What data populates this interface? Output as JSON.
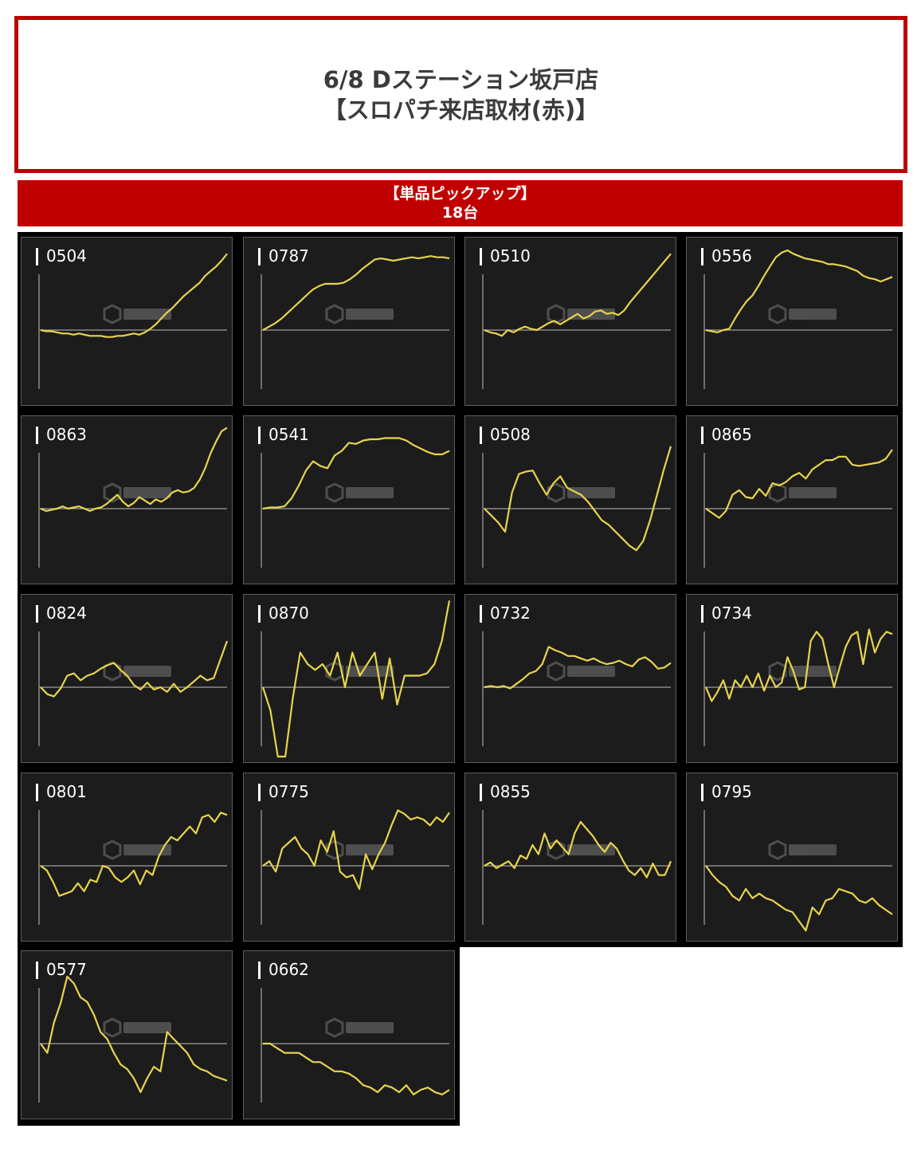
{
  "header": {
    "title_line1": "6/8 Dステーション坂戸店",
    "title_line2": "【スロパチ来店取材(赤)】"
  },
  "banner": {
    "line1": "【単品ピックアップ】",
    "line2": "18台"
  },
  "colors": {
    "accent": "#c00000",
    "line": "#e8d44d",
    "panel": "#1c1c1c"
  },
  "chart_data": [
    {
      "type": "line",
      "title": "0504",
      "series": [
        {
          "values": [
            0,
            -1,
            -1,
            -2,
            -3,
            -3,
            -4,
            -3,
            -4,
            -5,
            -5,
            -5,
            -6,
            -6,
            -5,
            -5,
            -4,
            -3,
            -4,
            -2,
            1,
            5,
            10,
            15,
            19,
            24,
            29,
            33,
            37,
            41,
            47,
            51,
            55,
            60,
            66
          ]
        }
      ]
    },
    {
      "type": "line",
      "title": "0787",
      "series": [
        {
          "values": [
            0,
            3,
            6,
            10,
            15,
            20,
            25,
            30,
            35,
            38,
            40,
            40,
            40,
            41,
            44,
            48,
            53,
            57,
            61,
            62,
            61,
            60,
            61,
            62,
            63,
            62,
            63,
            64,
            63,
            63,
            62
          ]
        }
      ]
    },
    {
      "type": "line",
      "title": "0510",
      "series": [
        {
          "values": [
            0,
            -2,
            -3,
            -5,
            0,
            -2,
            1,
            3,
            1,
            0,
            3,
            6,
            8,
            5,
            8,
            11,
            14,
            10,
            12,
            16,
            17,
            14,
            15,
            13,
            17,
            24,
            30,
            36,
            42,
            48,
            54,
            60,
            66
          ]
        }
      ]
    },
    {
      "type": "line",
      "title": "0556",
      "series": [
        {
          "values": [
            0,
            -1,
            -2,
            0,
            1,
            10,
            18,
            25,
            30,
            38,
            47,
            55,
            63,
            67,
            69,
            66,
            64,
            62,
            61,
            60,
            59,
            57,
            57,
            56,
            55,
            53,
            51,
            47,
            45,
            44,
            42,
            44,
            46
          ]
        }
      ]
    },
    {
      "type": "line",
      "title": "0863",
      "series": [
        {
          "values": [
            0,
            -2,
            -1,
            0,
            2,
            0,
            1,
            2,
            0,
            -2,
            0,
            1,
            4,
            8,
            12,
            6,
            2,
            5,
            10,
            7,
            4,
            8,
            6,
            9,
            14,
            16,
            14,
            15,
            18,
            25,
            35,
            48,
            58,
            67,
            70
          ]
        }
      ]
    },
    {
      "type": "line",
      "title": "0541",
      "series": [
        {
          "values": [
            0,
            1,
            1,
            2,
            9,
            20,
            33,
            41,
            37,
            35,
            46,
            50,
            57,
            56,
            59,
            60,
            60,
            61,
            61,
            61,
            59,
            55,
            52,
            49,
            47,
            47,
            50
          ]
        }
      ]
    },
    {
      "type": "line",
      "title": "0508",
      "series": [
        {
          "values": [
            0,
            -6,
            -12,
            -20,
            14,
            30,
            32,
            33,
            22,
            12,
            22,
            28,
            18,
            15,
            12,
            6,
            -2,
            -10,
            -14,
            -20,
            -26,
            -32,
            -36,
            -28,
            -10,
            12,
            34,
            54
          ]
        }
      ]
    },
    {
      "type": "line",
      "title": "0865",
      "series": [
        {
          "values": [
            0,
            -4,
            -8,
            -2,
            12,
            16,
            10,
            9,
            17,
            11,
            22,
            20,
            23,
            28,
            31,
            26,
            34,
            38,
            42,
            42,
            45,
            45,
            38,
            37,
            38,
            39,
            40,
            43,
            51
          ]
        }
      ]
    },
    {
      "type": "line",
      "title": "0824",
      "series": [
        {
          "values": [
            0,
            -6,
            -8,
            -1,
            10,
            12,
            6,
            10,
            12,
            16,
            19,
            21,
            15,
            10,
            2,
            -2,
            4,
            -2,
            0,
            -4,
            3,
            -4,
            0,
            5,
            10,
            6,
            8,
            24,
            40
          ]
        }
      ]
    },
    {
      "type": "line",
      "title": "0870",
      "series": [
        {
          "values": [
            0,
            -20,
            -60,
            -60,
            -10,
            30,
            20,
            15,
            20,
            10,
            30,
            0,
            30,
            10,
            20,
            30,
            -10,
            25,
            -15,
            10,
            10,
            10,
            12,
            20,
            40,
            75
          ]
        }
      ]
    },
    {
      "type": "line",
      "title": "0732",
      "series": [
        {
          "values": [
            0,
            1,
            0,
            1,
            -1,
            3,
            7,
            12,
            14,
            20,
            35,
            32,
            30,
            27,
            27,
            25,
            23,
            25,
            22,
            20,
            21,
            23,
            20,
            18,
            24,
            26,
            22,
            16,
            17,
            21
          ]
        }
      ]
    },
    {
      "type": "line",
      "title": "0734",
      "series": [
        {
          "values": [
            0,
            -12,
            -4,
            6,
            -10,
            6,
            0,
            10,
            0,
            12,
            -3,
            10,
            0,
            4,
            26,
            14,
            -2,
            0,
            40,
            48,
            42,
            20,
            0,
            18,
            35,
            45,
            48,
            20,
            50,
            30,
            42,
            48,
            46
          ]
        }
      ]
    },
    {
      "type": "line",
      "title": "0801",
      "series": [
        {
          "values": [
            0,
            -4,
            -14,
            -26,
            -24,
            -22,
            -15,
            -22,
            -12,
            -14,
            0,
            -2,
            -10,
            -14,
            -10,
            -4,
            -16,
            -4,
            -8,
            8,
            18,
            25,
            22,
            28,
            34,
            28,
            42,
            44,
            38,
            46,
            44
          ]
        }
      ]
    },
    {
      "type": "line",
      "title": "0775",
      "series": [
        {
          "values": [
            0,
            4,
            -5,
            15,
            20,
            25,
            15,
            10,
            0,
            22,
            12,
            30,
            -5,
            -10,
            -8,
            -20,
            10,
            -3,
            10,
            20,
            35,
            48,
            45,
            40,
            42,
            40,
            35,
            42,
            38,
            46
          ]
        }
      ]
    },
    {
      "type": "line",
      "title": "0855",
      "series": [
        {
          "values": [
            0,
            3,
            -2,
            1,
            4,
            -2,
            9,
            6,
            18,
            10,
            28,
            15,
            22,
            16,
            10,
            28,
            38,
            32,
            26,
            18,
            12,
            20,
            15,
            5,
            -4,
            -8,
            -2,
            -10,
            2,
            -8,
            -8,
            4
          ]
        }
      ]
    },
    {
      "type": "line",
      "title": "0795",
      "series": [
        {
          "values": [
            0,
            -8,
            -14,
            -18,
            -26,
            -30,
            -20,
            -28,
            -24,
            -28,
            -30,
            -34,
            -38,
            -40,
            -48,
            -56,
            -36,
            -42,
            -30,
            -28,
            -20,
            -22,
            -24,
            -30,
            -32,
            -28,
            -34,
            -38,
            -42
          ]
        }
      ]
    },
    {
      "type": "line",
      "title": "0577",
      "series": [
        {
          "values": [
            0,
            -8,
            18,
            35,
            58,
            52,
            40,
            36,
            25,
            10,
            4,
            -8,
            -18,
            -22,
            -30,
            -42,
            -30,
            -20,
            -24,
            10,
            4,
            -2,
            -8,
            -18,
            -22,
            -24,
            -28,
            -30,
            -32
          ]
        }
      ]
    },
    {
      "type": "line",
      "title": "0662",
      "series": [
        {
          "values": [
            0,
            0,
            -4,
            -8,
            -8,
            -8,
            -12,
            -16,
            -16,
            -20,
            -24,
            -24,
            -26,
            -30,
            -36,
            -38,
            -42,
            -36,
            -38,
            -42,
            -36,
            -44,
            -40,
            -38,
            -42,
            -44,
            -40
          ]
        }
      ]
    }
  ]
}
